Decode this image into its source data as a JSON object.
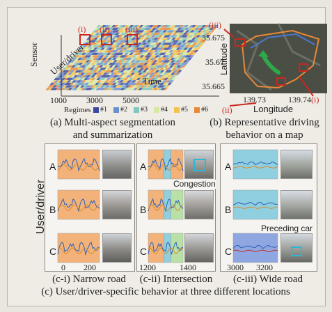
{
  "panel_a": {
    "ylabel_outer": "Sensor",
    "ylabel_inner": "User/driver",
    "xlabel_inner": "Time",
    "xticks": [
      "1000",
      "3000",
      "5000"
    ],
    "legend_title": "Regimes",
    "legend": [
      {
        "label": "#1",
        "color": "#3b4aa0"
      },
      {
        "label": "#2",
        "color": "#6a8fd0"
      },
      {
        "label": "#3",
        "color": "#7fc7c0"
      },
      {
        "label": "#4",
        "color": "#d7e9a0"
      },
      {
        "label": "#5",
        "color": "#f2c24a"
      },
      {
        "label": "#6",
        "color": "#e8893a"
      }
    ],
    "markers": [
      "(i)",
      "(ii)",
      "(iii)"
    ],
    "caption_l1": "(a) Multi-aspect segmentation",
    "caption_l2": "and summarization"
  },
  "panel_b": {
    "ylabel": "Latitude",
    "xlabel": "Longitude",
    "yticks": [
      "35.675",
      "35.67",
      "35.665"
    ],
    "xticks": [
      "139.73",
      "139.74"
    ],
    "markers": [
      "(iii)",
      "(ii)",
      "(i)"
    ],
    "caption_l1": "(b) Representative driving",
    "caption_l2": "behavior on a map"
  },
  "panel_c": {
    "ylabel": "User/driver",
    "rows": [
      "A",
      "B",
      "C"
    ],
    "sub": [
      {
        "caption": "(c-i) Narrow road",
        "xticks": [
          "0",
          "200"
        ]
      },
      {
        "caption": "(c-ii) Intersection",
        "xticks": [
          "1200",
          "1400"
        ],
        "annotation": "Congestion"
      },
      {
        "caption": "(c-iii) Wide road",
        "xticks": [
          "3000",
          "3200"
        ],
        "annotation": "Preceding car"
      }
    ],
    "caption": "(c) User/driver-specific behavior at three different locations"
  },
  "colors": {
    "accent_red": "#c8281f",
    "orange_fill": "#f2b27a",
    "blue_fill": "#8fcfe0",
    "green_fill": "#b9e0a6"
  }
}
